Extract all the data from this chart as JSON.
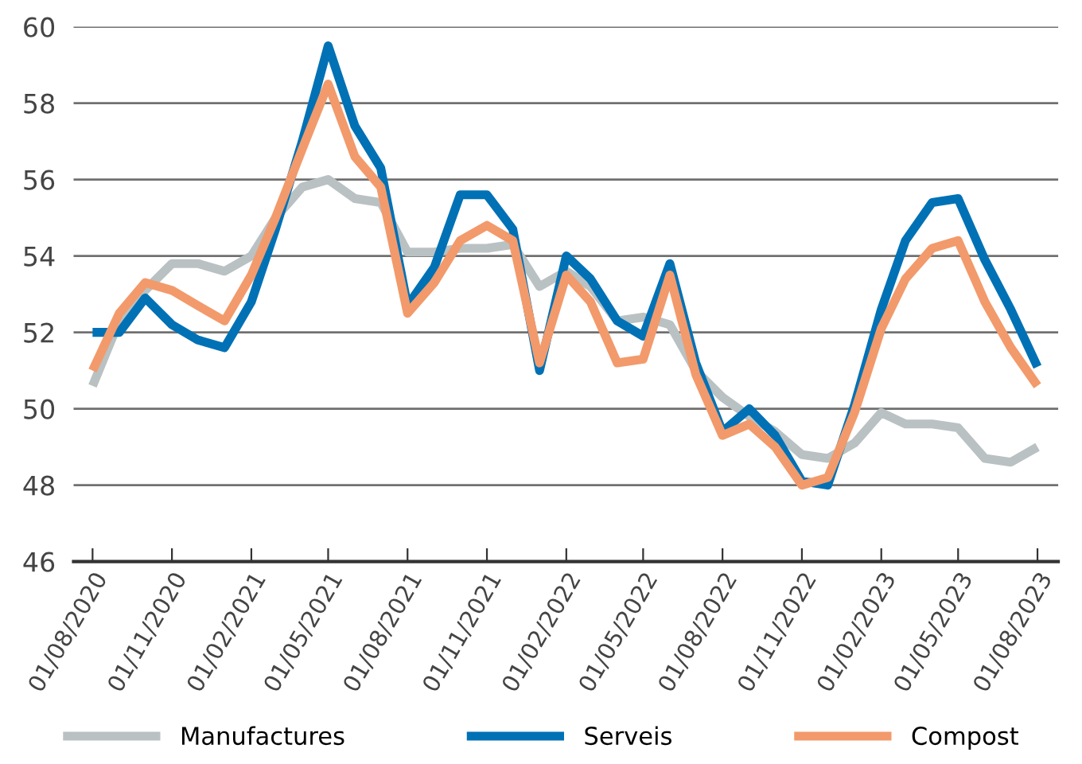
{
  "chart_data": {
    "type": "line",
    "x": [
      "2020-08",
      "2020-09",
      "2020-10",
      "2020-11",
      "2020-12",
      "2021-01",
      "2021-02",
      "2021-03",
      "2021-04",
      "2021-05",
      "2021-06",
      "2021-07",
      "2021-08",
      "2021-09",
      "2021-10",
      "2021-11",
      "2021-12",
      "2022-01",
      "2022-02",
      "2022-03",
      "2022-04",
      "2022-05",
      "2022-06",
      "2022-07",
      "2022-08",
      "2022-09",
      "2022-10",
      "2022-11",
      "2022-12",
      "2023-01",
      "2023-02",
      "2023-03",
      "2023-04",
      "2023-05",
      "2023-06",
      "2023-07",
      "2023-08"
    ],
    "series": [
      {
        "name": "Manufactures",
        "color": "#b9c1c3",
        "values": [
          50.6,
          52.3,
          53.1,
          53.8,
          53.8,
          53.6,
          54.0,
          55.0,
          55.8,
          56.0,
          55.5,
          55.4,
          54.1,
          54.1,
          54.2,
          54.2,
          54.3,
          53.2,
          53.6,
          53.2,
          52.3,
          52.4,
          52.2,
          51.0,
          50.3,
          49.8,
          49.4,
          48.8,
          48.7,
          49.1,
          49.9,
          49.6,
          49.6,
          49.5,
          48.7,
          48.6,
          49.0
        ]
      },
      {
        "name": "Serveis",
        "color": "#0071b5",
        "values": [
          52.0,
          52.0,
          52.9,
          52.2,
          51.8,
          51.6,
          52.8,
          54.7,
          57.0,
          59.5,
          57.4,
          56.3,
          52.7,
          53.7,
          55.6,
          55.6,
          54.7,
          51.0,
          54.0,
          53.4,
          52.3,
          51.9,
          53.8,
          51.2,
          49.4,
          50.0,
          49.3,
          48.1,
          48.0,
          50.1,
          52.6,
          54.4,
          55.4,
          55.5,
          53.9,
          52.6,
          51.1
        ]
      },
      {
        "name": "Compost",
        "color": "#f29a6b",
        "values": [
          51.0,
          52.5,
          53.3,
          53.1,
          52.7,
          52.3,
          53.5,
          55.0,
          56.8,
          58.5,
          56.6,
          55.8,
          52.5,
          53.3,
          54.4,
          54.8,
          54.4,
          51.2,
          53.5,
          52.8,
          51.2,
          51.3,
          53.5,
          50.9,
          49.3,
          49.6,
          49.0,
          48.0,
          48.2,
          49.9,
          52.1,
          53.4,
          54.2,
          54.4,
          52.8,
          51.6,
          50.6
        ]
      }
    ],
    "xlim": [
      "2020-07-10",
      "2023-08-25"
    ],
    "xticks": [
      {
        "value": "2020-08",
        "label": "01/08/2020"
      },
      {
        "value": "2020-11",
        "label": "01/11/2020"
      },
      {
        "value": "2021-02",
        "label": "01/02/2021"
      },
      {
        "value": "2021-05",
        "label": "01/05/2021"
      },
      {
        "value": "2021-08",
        "label": "01/08/2021"
      },
      {
        "value": "2021-11",
        "label": "01/11/2021"
      },
      {
        "value": "2022-02",
        "label": "01/02/2022"
      },
      {
        "value": "2022-05",
        "label": "01/05/2022"
      },
      {
        "value": "2022-08",
        "label": "01/08/2022"
      },
      {
        "value": "2022-11",
        "label": "01/11/2022"
      },
      {
        "value": "2023-02",
        "label": "01/02/2023"
      },
      {
        "value": "2023-05",
        "label": "01/05/2023"
      },
      {
        "value": "2023-08",
        "label": "01/08/2023"
      }
    ],
    "ylim": [
      46,
      60
    ],
    "yticks": [
      46,
      48,
      50,
      52,
      54,
      56,
      58,
      60
    ],
    "grid": "y",
    "legend": "bottom",
    "marker": "none",
    "line_style": "solid"
  }
}
